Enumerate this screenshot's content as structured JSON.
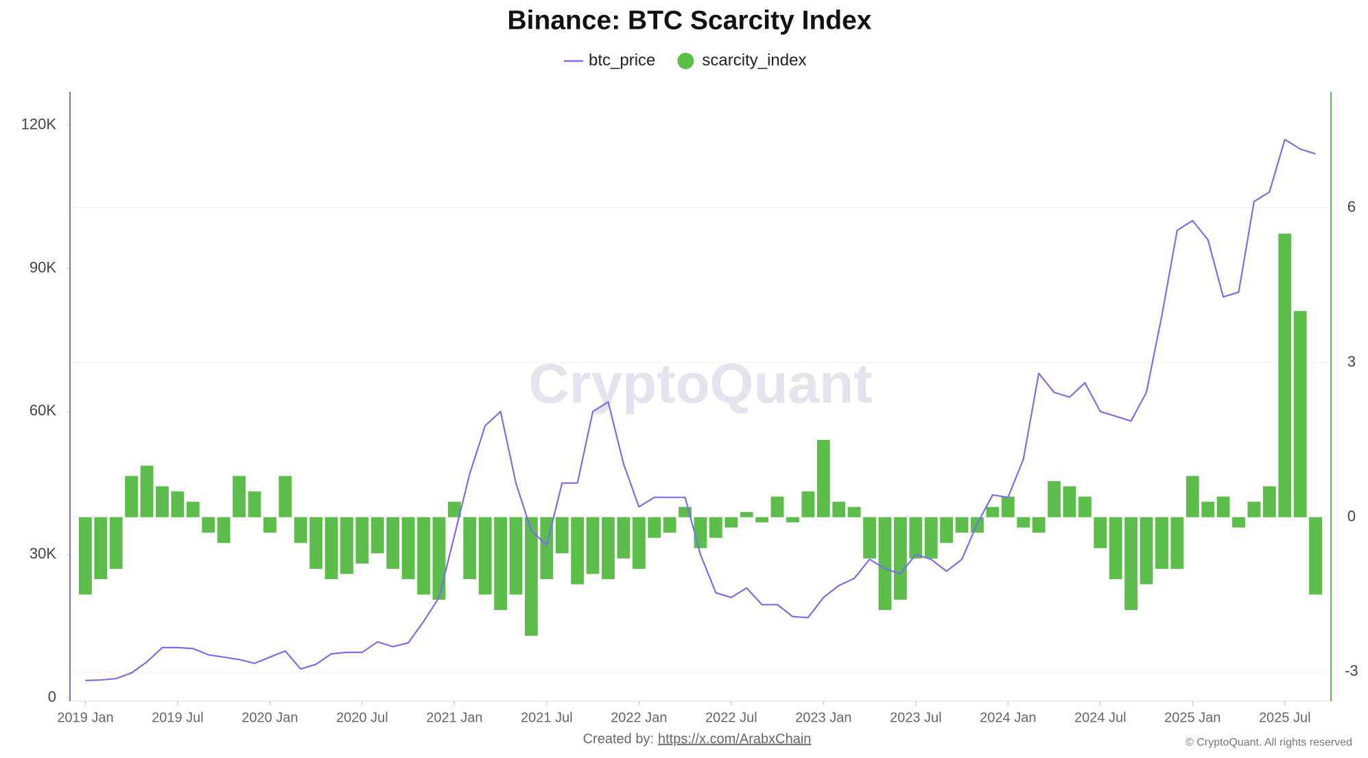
{
  "chart_data": {
    "type": "line_bar_dual",
    "title": "Binance: BTC Scarcity Index",
    "x": [
      "2019-01",
      "2019-02",
      "2019-03",
      "2019-04",
      "2019-05",
      "2019-06",
      "2019-07",
      "2019-08",
      "2019-09",
      "2019-10",
      "2019-11",
      "2019-12",
      "2020-01",
      "2020-02",
      "2020-03",
      "2020-04",
      "2020-05",
      "2020-06",
      "2020-07",
      "2020-08",
      "2020-09",
      "2020-10",
      "2020-11",
      "2020-12",
      "2021-01",
      "2021-02",
      "2021-03",
      "2021-04",
      "2021-05",
      "2021-06",
      "2021-07",
      "2021-08",
      "2021-09",
      "2021-10",
      "2021-11",
      "2021-12",
      "2022-01",
      "2022-02",
      "2022-03",
      "2022-04",
      "2022-05",
      "2022-06",
      "2022-07",
      "2022-08",
      "2022-09",
      "2022-10",
      "2022-11",
      "2022-12",
      "2023-01",
      "2023-02",
      "2023-03",
      "2023-04",
      "2023-05",
      "2023-06",
      "2023-07",
      "2023-08",
      "2023-09",
      "2023-10",
      "2023-11",
      "2023-12",
      "2024-01",
      "2024-02",
      "2024-03",
      "2024-04",
      "2024-05",
      "2024-06",
      "2024-07",
      "2024-08",
      "2024-09",
      "2024-10",
      "2024-11",
      "2024-12",
      "2025-01",
      "2025-02",
      "2025-03",
      "2025-04",
      "2025-05",
      "2025-06",
      "2025-07",
      "2025-08",
      "2025-09"
    ],
    "series": [
      {
        "name": "btc_price",
        "color": "#7b6cf0",
        "axis": "y",
        "values": [
          3600,
          3700,
          4000,
          5200,
          7500,
          10500,
          10500,
          10300,
          9000,
          8500,
          8000,
          7200,
          8500,
          9800,
          6000,
          7000,
          9200,
          9500,
          9500,
          11700,
          10700,
          11500,
          16000,
          21000,
          34000,
          47000,
          57000,
          60000,
          45000,
          35000,
          32000,
          45000,
          45000,
          60000,
          62000,
          49000,
          40000,
          42000,
          42000,
          42000,
          30000,
          22000,
          21000,
          23000,
          19500,
          19500,
          17000,
          16800,
          21000,
          23500,
          25000,
          29000,
          27000,
          26000,
          30000,
          29000,
          26500,
          29000,
          36500,
          42500,
          42000,
          50000,
          68000,
          64000,
          63000,
          66000,
          60000,
          59000,
          58000,
          64000,
          80000,
          98000,
          100000,
          96000,
          84000,
          85000,
          104000,
          106000,
          117000,
          115000,
          114000
        ]
      },
      {
        "name": "scarcity_index",
        "color": "#5dbd4a",
        "axis": "y2",
        "values": [
          -1.5,
          -1.2,
          -1.0,
          0.8,
          1.0,
          0.6,
          0.5,
          0.3,
          -0.3,
          -0.5,
          0.8,
          0.5,
          -0.3,
          0.8,
          -0.5,
          -1.0,
          -1.2,
          -1.1,
          -0.9,
          -0.7,
          -1.0,
          -1.2,
          -1.5,
          -1.6,
          0.3,
          -1.2,
          -1.5,
          -1.8,
          -1.5,
          -2.3,
          -1.2,
          -0.7,
          -1.3,
          -1.1,
          -1.2,
          -0.8,
          -1.0,
          -0.4,
          -0.3,
          0.2,
          -0.6,
          -0.4,
          -0.2,
          0.1,
          -0.1,
          0.4,
          -0.1,
          0.5,
          1.5,
          0.3,
          0.2,
          -0.8,
          -1.8,
          -1.6,
          -0.8,
          -0.8,
          -0.5,
          -0.3,
          -0.3,
          0.2,
          0.4,
          -0.2,
          -0.3,
          0.7,
          0.6,
          0.4,
          -0.6,
          -1.2,
          -1.8,
          -1.3,
          -1.0,
          -1.0,
          0.8,
          0.3,
          0.4,
          -0.2,
          0.3,
          0.6,
          5.5,
          4.0,
          -1.5
        ]
      }
    ],
    "xlim": [
      "2018-12",
      "2025-10"
    ],
    "xticks": [
      {
        "value": "2019-01",
        "label": "2019 Jan"
      },
      {
        "value": "2019-07",
        "label": "2019 Jul"
      },
      {
        "value": "2020-01",
        "label": "2020 Jan"
      },
      {
        "value": "2020-07",
        "label": "2020 Jul"
      },
      {
        "value": "2021-01",
        "label": "2021 Jan"
      },
      {
        "value": "2021-07",
        "label": "2021 Jul"
      },
      {
        "value": "2022-01",
        "label": "2022 Jan"
      },
      {
        "value": "2022-07",
        "label": "2022 Jul"
      },
      {
        "value": "2023-01",
        "label": "2023 Jan"
      },
      {
        "value": "2023-07",
        "label": "2023 Jul"
      },
      {
        "value": "2024-01",
        "label": "2024 Jan"
      },
      {
        "value": "2024-07",
        "label": "2024 Jul"
      },
      {
        "value": "2025-01",
        "label": "2025 Jan"
      },
      {
        "value": "2025-07",
        "label": "2025 Jul"
      }
    ],
    "ylim": [
      0,
      127000
    ],
    "yticks": [
      0,
      {
        "value": 30000,
        "label": "30K"
      },
      {
        "value": 60000,
        "label": "60K"
      },
      {
        "value": 90000,
        "label": "90K"
      },
      {
        "value": 120000,
        "label": "120K"
      }
    ],
    "y2lim": [
      -3.5,
      8.25
    ],
    "y2ticks": [
      -3,
      0,
      3,
      6
    ],
    "grid": true,
    "legend": "top"
  },
  "watermark": "CryptoQuant",
  "footer": {
    "label": "Created by:",
    "link": "https://x.com/ArabxChain",
    "copyright": "© CryptoQuant. All rights reserved"
  }
}
